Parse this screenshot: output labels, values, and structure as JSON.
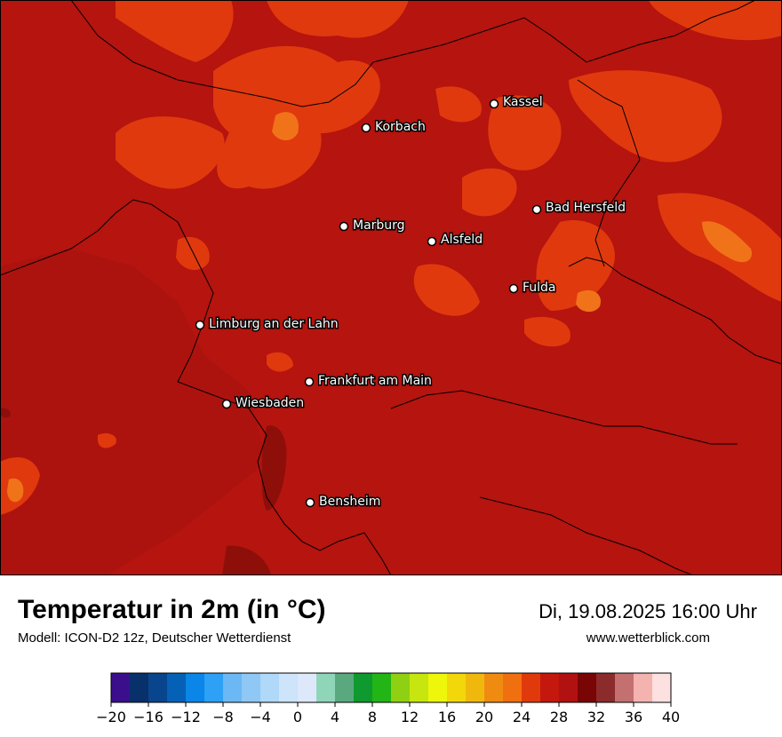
{
  "header": {
    "title": "Temperatur in 2m (in °C)",
    "subtitle": "Modell: ICON-D2 12z, Deutscher Wetterdienst",
    "datetime": "Di, 19.08.2025 16:00 Uhr",
    "website": "www.wetterblick.com"
  },
  "cities": [
    {
      "name": "Kassel",
      "label": "Kassel"
    },
    {
      "name": "Korbach",
      "label": "Korbach"
    },
    {
      "name": "Bad Hersfeld",
      "label": "Bad Hersfeld"
    },
    {
      "name": "Marburg",
      "label": "Marburg"
    },
    {
      "name": "Alsfeld",
      "label": "Alsfeld"
    },
    {
      "name": "Fulda",
      "label": "Fulda"
    },
    {
      "name": "Limburg",
      "label": "Limburg an der Lahn"
    },
    {
      "name": "Frankfurt",
      "label": "Frankfurt am Main"
    },
    {
      "name": "Wiesbaden",
      "label": "Wiesbaden"
    },
    {
      "name": "Bensheim",
      "label": "Bensheim"
    }
  ],
  "colors": {
    "background_map": "#B5140F",
    "warm_patches": "#E0390E",
    "hot_patches": "#F0731A",
    "cool_patches": "#8E0E0A"
  },
  "colorbar": {
    "min": -20,
    "max": 40,
    "step": 2,
    "tick_labels": [
      "−20",
      "−16",
      "−12",
      "−8",
      "−4",
      "0",
      "4",
      "8",
      "12",
      "16",
      "20",
      "24",
      "28",
      "32",
      "36",
      "40"
    ],
    "colors": [
      "#3b0f8c",
      "#08306b",
      "#08458c",
      "#0561b5",
      "#0a85e8",
      "#2ea0f5",
      "#6cb8f5",
      "#8fc8f5",
      "#b0d8f8",
      "#cde4fa",
      "#dde9fb",
      "#8fd6b8",
      "#5aa87e",
      "#0e9a2e",
      "#22b515",
      "#8fd112",
      "#c7e610",
      "#eef60b",
      "#f2d80b",
      "#f0b80d",
      "#f08b12",
      "#f0700f",
      "#e03a0c",
      "#c4170e",
      "#b11111",
      "#7a0505",
      "#8c2b2b",
      "#c47070",
      "#f5b3b0",
      "#fde0e0"
    ]
  }
}
